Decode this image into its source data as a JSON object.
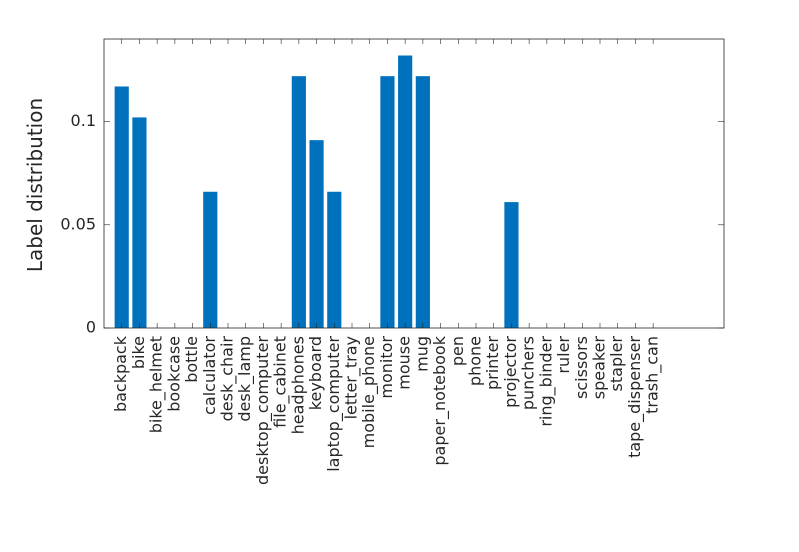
{
  "chart_data": {
    "type": "bar",
    "y_label": "Label distribution",
    "categories": [
      "backpack",
      "bike",
      "bike_helmet",
      "bookcase",
      "bottle",
      "calculator",
      "desk_chair",
      "desk_lamp",
      "desktop_computer",
      "file_cabinet",
      "headphones",
      "keyboard",
      "laptop_computer",
      "letter_tray",
      "mobile_phone",
      "monitor",
      "mouse",
      "mug",
      "paper_notebook",
      "pen",
      "phone",
      "printer",
      "projector",
      "punchers",
      "ring_binder",
      "ruler",
      "scissors",
      "speaker",
      "stapler",
      "tape_dispenser",
      "trash_can"
    ],
    "values": [
      0.117,
      0.102,
      0,
      0,
      0,
      0.066,
      0,
      0,
      0,
      0,
      0.122,
      0.091,
      0.066,
      0,
      0,
      0.122,
      0.132,
      0.122,
      0,
      0,
      0,
      0,
      0.061,
      0,
      0,
      0,
      0,
      0,
      0,
      0,
      0
    ],
    "color": "#0072bd",
    "xlim": [
      0,
      35
    ],
    "ylim": [
      0,
      0.14
    ],
    "yticks": [
      0,
      0.05,
      0.1
    ],
    "grid": false
  }
}
